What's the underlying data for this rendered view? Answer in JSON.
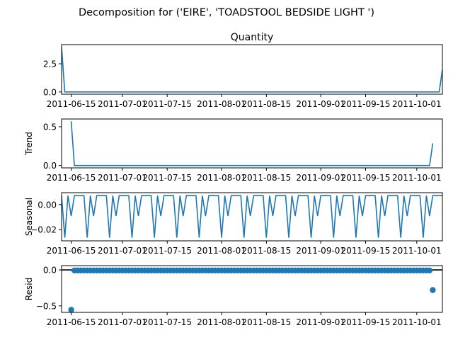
{
  "figure": {
    "suptitle": "Decomposition for ('EIRE', 'TOADSTOOL BEDSIDE LIGHT ')"
  },
  "chart_data": [
    {
      "type": "line",
      "title": "Quantity",
      "ylabel": "",
      "xlim": [
        "2011-06-12",
        "2011-10-09"
      ],
      "ylim": [
        -0.2,
        4.2
      ],
      "yticks": [
        0.0,
        2.5
      ],
      "ytick_labels": [
        "0.0",
        "2.5"
      ],
      "x_ticks": [
        "2011-06-15",
        "2011-07-01",
        "2011-07-15",
        "2011-08-01",
        "2011-08-15",
        "2011-09-01",
        "2011-09-15",
        "2011-10-01"
      ],
      "color": "#1f77b4",
      "series": [
        {
          "x": [
            "2011-06-12",
            "2011-06-13",
            "2011-10-08",
            "2011-10-09"
          ],
          "values": [
            4.0,
            0.0,
            0.0,
            2.0
          ]
        }
      ]
    },
    {
      "type": "line",
      "title": "",
      "ylabel": "Trend",
      "xlim": [
        "2011-06-12",
        "2011-10-09"
      ],
      "ylim": [
        -0.03,
        0.6
      ],
      "yticks": [
        0.0,
        0.5
      ],
      "ytick_labels": [
        "0.0",
        "0.5"
      ],
      "x_ticks": [
        "2011-06-15",
        "2011-07-01",
        "2011-07-15",
        "2011-08-01",
        "2011-08-15",
        "2011-09-01",
        "2011-09-15",
        "2011-10-01"
      ],
      "color": "#1f77b4",
      "series": [
        {
          "x": [
            "2011-06-15",
            "2011-06-16",
            "2011-10-05",
            "2011-10-06"
          ],
          "values": [
            0.571,
            0.0,
            0.0,
            0.286
          ]
        }
      ]
    },
    {
      "type": "line",
      "title": "",
      "ylabel": "Seasonal",
      "xlim": [
        "2011-06-12",
        "2011-10-09"
      ],
      "ylim": [
        -0.029,
        0.0095
      ],
      "yticks": [
        0.0,
        -0.02
      ],
      "ytick_labels": [
        "0.00",
        "−0.02"
      ],
      "x_ticks": [
        "2011-06-15",
        "2011-07-01",
        "2011-07-15",
        "2011-08-01",
        "2011-08-15",
        "2011-09-01",
        "2011-09-15",
        "2011-10-01"
      ],
      "color": "#1f77b4",
      "weekly_pattern": [
        0.0071,
        -0.0265,
        0.0071,
        -0.0092,
        0.0071,
        0.0071,
        0.0071
      ],
      "start_date": "2011-06-12"
    },
    {
      "type": "scatter",
      "title": "",
      "ylabel": "Resid",
      "xlim": [
        "2011-06-12",
        "2011-10-09"
      ],
      "ylim": [
        -0.59,
        0.06
      ],
      "yticks": [
        0.0,
        -0.5
      ],
      "ytick_labels": [
        "0.0",
        "−0.5"
      ],
      "x_ticks": [
        "2011-06-15",
        "2011-07-01",
        "2011-07-15",
        "2011-08-01",
        "2011-08-15",
        "2011-09-01",
        "2011-09-15",
        "2011-10-01"
      ],
      "color": "#1f77b4",
      "zero_line": true,
      "x_start": "2011-06-15",
      "x_end": "2011-10-06",
      "baseline_value": -0.007,
      "outliers": [
        {
          "x": "2011-06-15",
          "value": -0.555
        },
        {
          "x": "2011-10-06",
          "value": -0.28
        }
      ]
    }
  ]
}
